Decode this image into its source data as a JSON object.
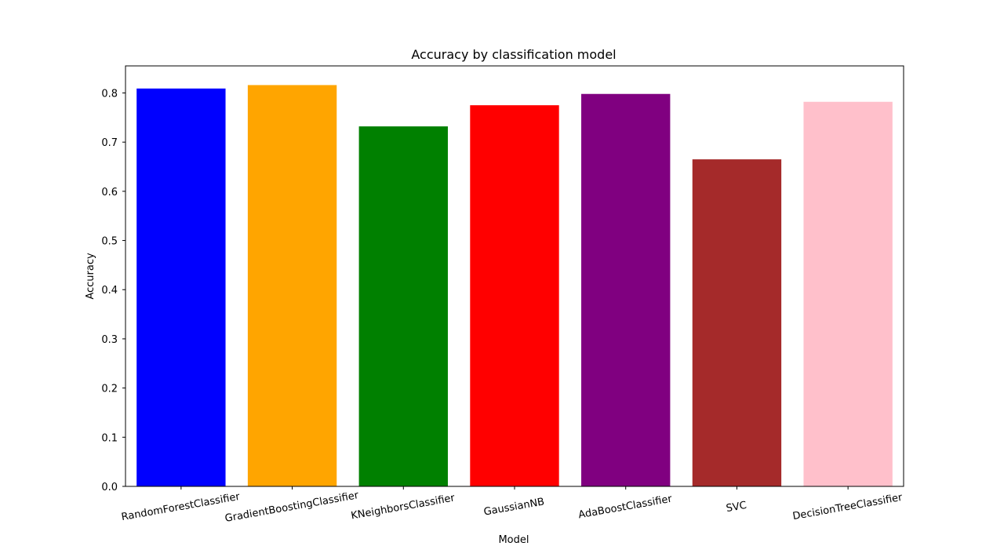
{
  "chart_data": {
    "type": "bar",
    "title": "Accuracy by classification model",
    "xlabel": "Model",
    "ylabel": "Accuracy",
    "ylim": [
      0,
      0.855
    ],
    "yticks": [
      "0.0",
      "0.1",
      "0.2",
      "0.3",
      "0.4",
      "0.5",
      "0.6",
      "0.7",
      "0.8"
    ],
    "categories": [
      "RandomForestClassifier",
      "GradientBoostingClassifier",
      "KNeighborsClassifier",
      "GaussianNB",
      "AdaBoostClassifier",
      "SVC",
      "DecisionTreeClassifier"
    ],
    "values": [
      0.809,
      0.816,
      0.732,
      0.775,
      0.798,
      0.665,
      0.782
    ],
    "colors": [
      "#0000ff",
      "#ffa500",
      "#008000",
      "#ff0000",
      "#800080",
      "#a52a2a",
      "#ffc0cb"
    ],
    "grid": false,
    "legend": "none"
  }
}
